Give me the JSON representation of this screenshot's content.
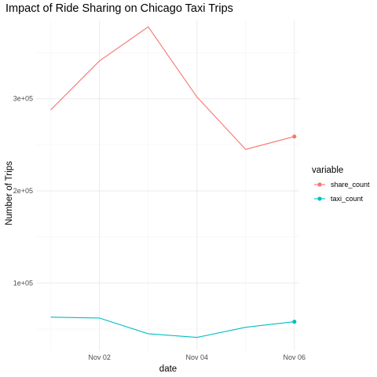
{
  "chart_data": {
    "type": "line",
    "title": "Impact of Ride Sharing on Chicago Taxi Trips",
    "xlabel": "date",
    "ylabel": "Number of Trips",
    "x": [
      "2018-11-01",
      "2018-11-02",
      "2018-11-03",
      "2018-11-04",
      "2018-11-05",
      "2018-11-06"
    ],
    "x_ticks": [
      "Nov 02",
      "Nov 04",
      "Nov 06"
    ],
    "y_ticks": [
      "1e+05",
      "2e+05",
      "3e+05"
    ],
    "ylim": [
      27000,
      385000
    ],
    "legend_title": "variable",
    "legend_position": "right",
    "grid": true,
    "series": [
      {
        "name": "share_count",
        "color": "#F8766D",
        "values": [
          288000,
          341000,
          378000,
          302000,
          245000,
          259000
        ]
      },
      {
        "name": "taxi_count",
        "color": "#00BFC4",
        "values": [
          63000,
          62000,
          45000,
          41000,
          52000,
          58000
        ]
      }
    ]
  }
}
